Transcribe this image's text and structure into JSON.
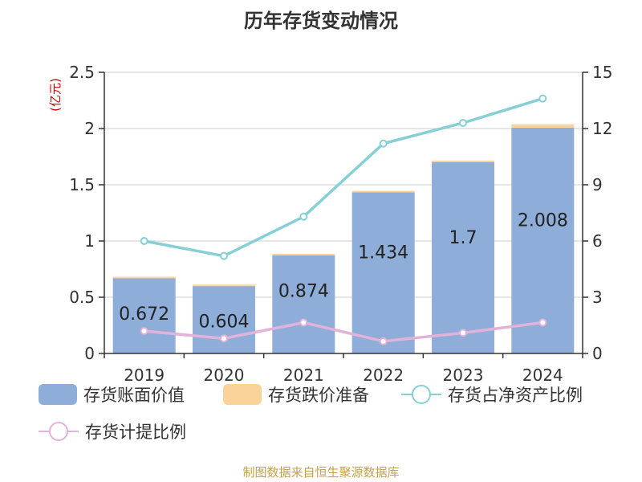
{
  "title": "历年存货变动情况",
  "source": "制图数据来自恒生聚源数据库",
  "chart_data": {
    "type": "bar",
    "categories": [
      "2019",
      "2020",
      "2021",
      "2022",
      "2023",
      "2024"
    ],
    "left_axis": {
      "unit_label": "(亿元)",
      "range": [
        0,
        2.5
      ],
      "ticks": [
        "0",
        "0.5",
        "1",
        "1.5",
        "2",
        "2.5"
      ]
    },
    "right_axis": {
      "range": [
        0,
        15
      ],
      "ticks": [
        "0",
        "3",
        "6",
        "9",
        "12",
        "15"
      ]
    },
    "series": [
      {
        "name": "存货账面价值",
        "kind": "bar",
        "axis": "left",
        "color": "#8eadd8",
        "values": [
          0.672,
          0.604,
          0.874,
          1.434,
          1.7,
          2.008
        ],
        "labels": [
          "0.672",
          "0.604",
          "0.874",
          "1.434",
          "1.7",
          "2.008"
        ]
      },
      {
        "name": "存货跌价准备",
        "kind": "bar-stacked",
        "axis": "left",
        "color": "#f9d39a",
        "values": [
          0.01,
          0.008,
          0.012,
          0.012,
          0.015,
          0.03
        ]
      },
      {
        "name": "存货占净资产比例",
        "kind": "line",
        "axis": "right",
        "color": "#86d0d5",
        "values": [
          6.0,
          5.2,
          7.3,
          11.2,
          12.3,
          13.6
        ]
      },
      {
        "name": "存货计提比例",
        "kind": "line",
        "axis": "right",
        "color": "#e2b2d9",
        "values": [
          1.2,
          0.8,
          1.65,
          0.65,
          1.1,
          1.65
        ]
      }
    ],
    "grid": true,
    "legend_position": "bottom"
  }
}
